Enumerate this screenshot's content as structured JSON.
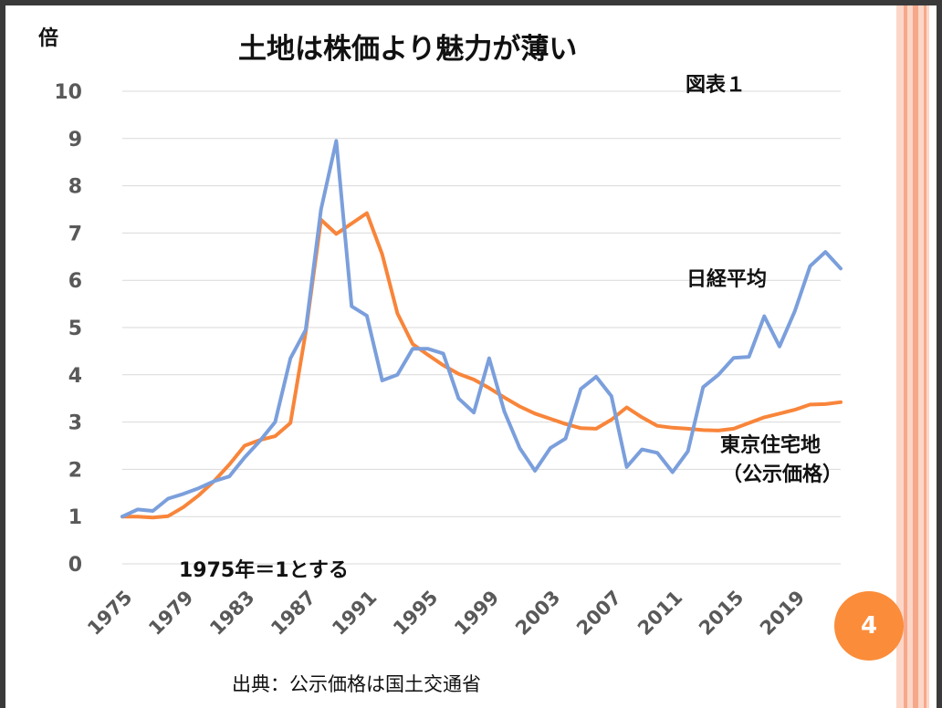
{
  "slide": {
    "page_number": "4",
    "source": "出典：公示価格は国土交通省",
    "colors": {
      "accent_circle": "#fb8c3a",
      "deco_bar": "#fbc2ad",
      "grid": "#d9d9d9"
    }
  },
  "chart_data": {
    "type": "line",
    "title": "土地は株価より魅力が薄い",
    "ylabel": "倍",
    "xlabel": "",
    "ylim": [
      0,
      10
    ],
    "yticks": [
      "0",
      "1",
      "2",
      "3",
      "4",
      "5",
      "6",
      "7",
      "8",
      "9",
      "10"
    ],
    "x": [
      1975,
      1976,
      1977,
      1978,
      1979,
      1980,
      1981,
      1982,
      1983,
      1984,
      1985,
      1986,
      1987,
      1988,
      1989,
      1990,
      1991,
      1992,
      1993,
      1994,
      1995,
      1996,
      1997,
      1998,
      1999,
      2000,
      2001,
      2002,
      2003,
      2004,
      2005,
      2006,
      2007,
      2008,
      2009,
      2010,
      2011,
      2012,
      2013,
      2014,
      2015,
      2016,
      2017,
      2018,
      2019,
      2020,
      2021,
      2022
    ],
    "xtick_labels": [
      "1975",
      "1979",
      "1983",
      "1987",
      "1991",
      "1995",
      "1999",
      "2003",
      "2007",
      "2011",
      "2015",
      "2019"
    ],
    "grid": true,
    "annotations": {
      "figure_label": "図表１",
      "base_note": "1975年＝1とする",
      "nikkei_label": "日経平均",
      "tokyo_label_line1": "東京住宅地",
      "tokyo_label_line2": "（公示価格）"
    },
    "series": [
      {
        "name": "日経平均",
        "color": "#7b9fdc",
        "values": [
          1.0,
          1.15,
          1.12,
          1.38,
          1.48,
          1.6,
          1.75,
          1.85,
          2.25,
          2.6,
          3.0,
          4.35,
          4.95,
          7.5,
          8.95,
          5.45,
          5.25,
          3.88,
          4.0,
          4.55,
          4.55,
          4.45,
          3.5,
          3.2,
          4.35,
          3.22,
          2.45,
          1.97,
          2.45,
          2.65,
          3.7,
          3.96,
          3.55,
          2.05,
          2.42,
          2.35,
          1.94,
          2.38,
          3.74,
          4.0,
          4.36,
          4.38,
          5.24,
          4.6,
          5.35,
          6.3,
          6.6,
          6.25
        ]
      },
      {
        "name": "東京住宅地（公示価格）",
        "color": "#f8853a",
        "values": [
          1.0,
          1.0,
          0.98,
          1.01,
          1.2,
          1.45,
          1.75,
          2.1,
          2.5,
          2.62,
          2.7,
          2.98,
          4.9,
          7.28,
          6.98,
          7.2,
          7.42,
          6.55,
          5.3,
          4.65,
          4.42,
          4.2,
          4.02,
          3.9,
          3.72,
          3.52,
          3.33,
          3.18,
          3.07,
          2.96,
          2.87,
          2.86,
          3.05,
          3.31,
          3.1,
          2.92,
          2.88,
          2.86,
          2.83,
          2.82,
          2.86,
          2.98,
          3.1,
          3.18,
          3.26,
          3.37,
          3.38,
          3.42
        ]
      }
    ]
  }
}
